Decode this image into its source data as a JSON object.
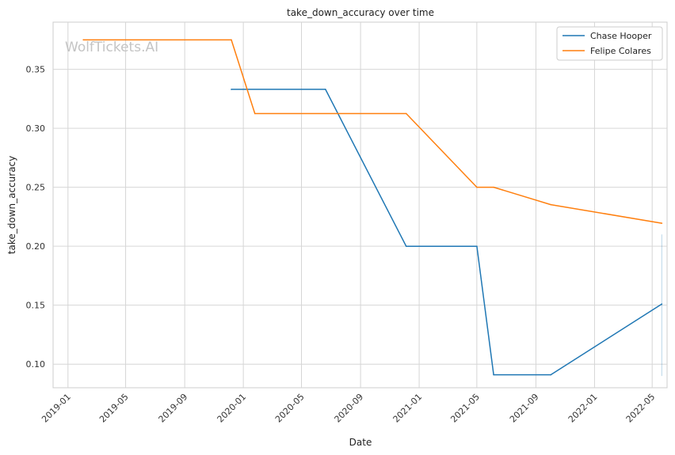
{
  "chart_data": {
    "type": "line",
    "title": "take_down_accuracy over time",
    "xlabel": "Date",
    "ylabel": "take_down_accuracy",
    "watermark": "WolfTickets.AI",
    "x_ticks": [
      "2019-01",
      "2019-05",
      "2019-09",
      "2020-01",
      "2020-05",
      "2020-09",
      "2021-01",
      "2021-05",
      "2021-09",
      "2022-01",
      "2022-05"
    ],
    "y_ticks": [
      "0.10",
      "0.15",
      "0.20",
      "0.25",
      "0.30",
      "0.35"
    ],
    "xlim": [
      "2018-12-01",
      "2022-06-01"
    ],
    "ylim": [
      0.08,
      0.39
    ],
    "grid": true,
    "legend_position": "top-right",
    "series": [
      {
        "name": "Chase Hooper",
        "color": "#1f77b4",
        "x": [
          "2019-12-07",
          "2020-06-20",
          "2020-12-05",
          "2021-05-01",
          "2021-06-05",
          "2021-10-02",
          "2022-05-21"
        ],
        "y": [
          0.333,
          0.333,
          0.2,
          0.2,
          0.091,
          0.091,
          0.151
        ]
      },
      {
        "name": "Felipe Colares",
        "color": "#ff7f0e",
        "x": [
          "2019-02-02",
          "2019-12-07",
          "2020-01-25",
          "2020-12-05",
          "2021-05-01",
          "2021-06-05",
          "2021-10-02",
          "2022-05-21"
        ],
        "y": [
          0.375,
          0.375,
          0.3125,
          0.3125,
          0.25,
          0.25,
          0.2353,
          0.2195
        ]
      }
    ],
    "error_band": {
      "x": "2022-05-21",
      "y_low": 0.09,
      "y_high": 0.21,
      "color": "#1f77b4"
    }
  }
}
